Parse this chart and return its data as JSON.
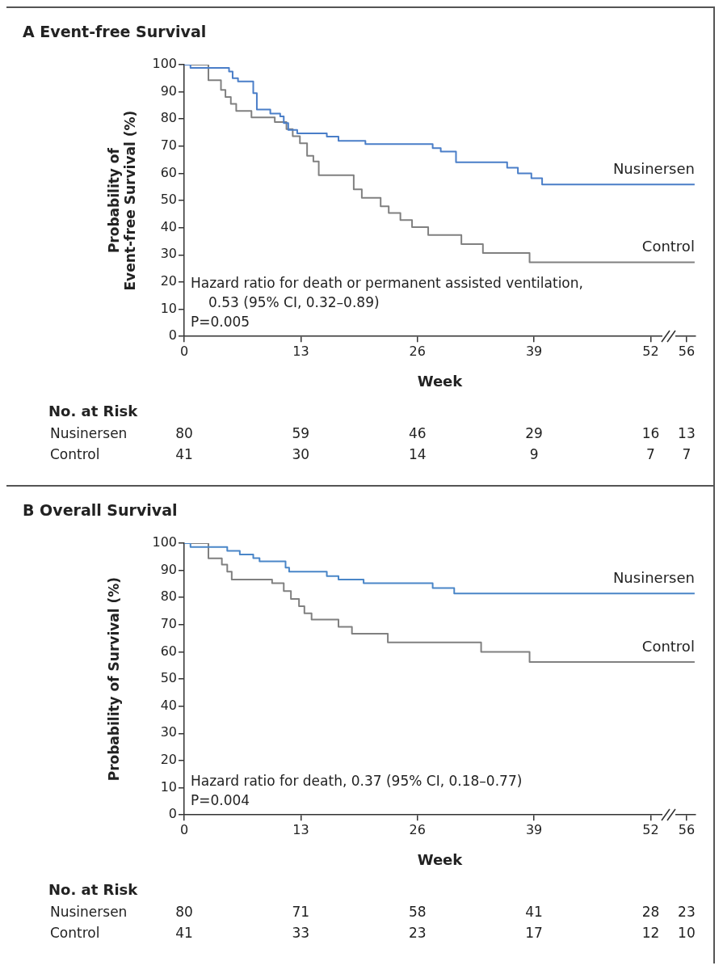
{
  "chart_data": [
    {
      "type": "step",
      "title": "A  Event-free Survival",
      "xlabel": "Week",
      "ylabel": "Probability of Event-free Survival (%)",
      "xlim": [
        0,
        57
      ],
      "ylim": [
        0,
        100
      ],
      "xticks": [
        0,
        13,
        26,
        39,
        52,
        56
      ],
      "yticks": [
        0,
        10,
        20,
        30,
        40,
        50,
        60,
        70,
        80,
        90,
        100
      ],
      "series": [
        {
          "name": "Nusinersen",
          "color": "#4a7ec8",
          "x": [
            0,
            0.7,
            5.0,
            5.4,
            6.0,
            7.7,
            8.1,
            9.6,
            10.7,
            11.1,
            11.6,
            12.6,
            15.9,
            17.2,
            20.2,
            27.7,
            28.6,
            30.3,
            36.0,
            37.2,
            38.7,
            39.9,
            56.9
          ],
          "values": [
            100,
            98.8,
            97.5,
            95,
            93.8,
            89.5,
            83.5,
            82,
            81,
            78.5,
            76,
            74.7,
            73.5,
            72,
            70.8,
            69.3,
            68,
            64.1,
            62.1,
            60,
            58.2,
            55.9,
            55.9
          ]
        },
        {
          "name": "Control",
          "color": "#808080",
          "x": [
            0,
            2.7,
            4.1,
            4.6,
            5.2,
            5.8,
            7.5,
            10.1,
            11.4,
            12.1,
            12.9,
            13.7,
            14.4,
            15.0,
            18.9,
            19.8,
            21.9,
            22.8,
            24.1,
            25.4,
            27.2,
            30.9,
            33.3,
            38.5,
            56.9
          ],
          "values": [
            100,
            94.3,
            90.7,
            88.1,
            85.6,
            83,
            80.6,
            78.9,
            76.3,
            73.7,
            71.1,
            66.5,
            64.4,
            59.3,
            54.1,
            51,
            47.9,
            45.4,
            42.8,
            40.2,
            37.3,
            34,
            30.7,
            27.3,
            27.3
          ]
        }
      ],
      "annotations": [
        "Hazard ratio for death or permanent assisted ventilation,",
        "0.53 (95% CI, 0.32–0.89)",
        "P=0.005",
        "No. at Risk",
        "Nusinersen",
        "80 59 46 29 16 13",
        "Control",
        "41 30 14 9 7 7"
      ]
    },
    {
      "type": "step",
      "title": "B  Overall Survival",
      "xlabel": "Week",
      "ylabel": "Probability of Survival (%)",
      "xlim": [
        0,
        57
      ],
      "ylim": [
        0,
        100
      ],
      "xticks": [
        0,
        13,
        26,
        39,
        52,
        56
      ],
      "yticks": [
        0,
        10,
        20,
        30,
        40,
        50,
        60,
        70,
        80,
        90,
        100
      ],
      "series": [
        {
          "name": "Nusinersen",
          "color": "#4a86c8",
          "x": [
            0,
            0.7,
            4.8,
            6.2,
            7.7,
            8.4,
            11.3,
            11.7,
            15.9,
            17.2,
            20.0,
            27.7,
            30.1,
            56.9
          ],
          "values": [
            100,
            98.6,
            97.2,
            95.8,
            94.5,
            93.3,
            91,
            89.5,
            87.9,
            86.6,
            85.3,
            83.5,
            81.5,
            81.5
          ]
        },
        {
          "name": "Control",
          "color": "#808080",
          "x": [
            0,
            2.7,
            4.2,
            4.8,
            5.3,
            9.8,
            11.1,
            11.9,
            12.8,
            13.4,
            14.2,
            17.2,
            18.7,
            22.7,
            33.1,
            38.5,
            56.9
          ],
          "values": [
            100,
            94.4,
            92.1,
            89.5,
            86.6,
            85.3,
            82.4,
            79.5,
            76.8,
            74.2,
            71.9,
            69.2,
            66.7,
            63.5,
            60,
            56.3,
            56.3
          ]
        }
      ],
      "annotations": [
        "Hazard ratio for death, 0.37 (95% CI, 0.18–0.77)",
        "P=0.004",
        "No. at Risk",
        "Nusinersen",
        "80 71 58 41 28 23",
        "Control",
        "41 33 23 17 12 10"
      ]
    }
  ]
}
